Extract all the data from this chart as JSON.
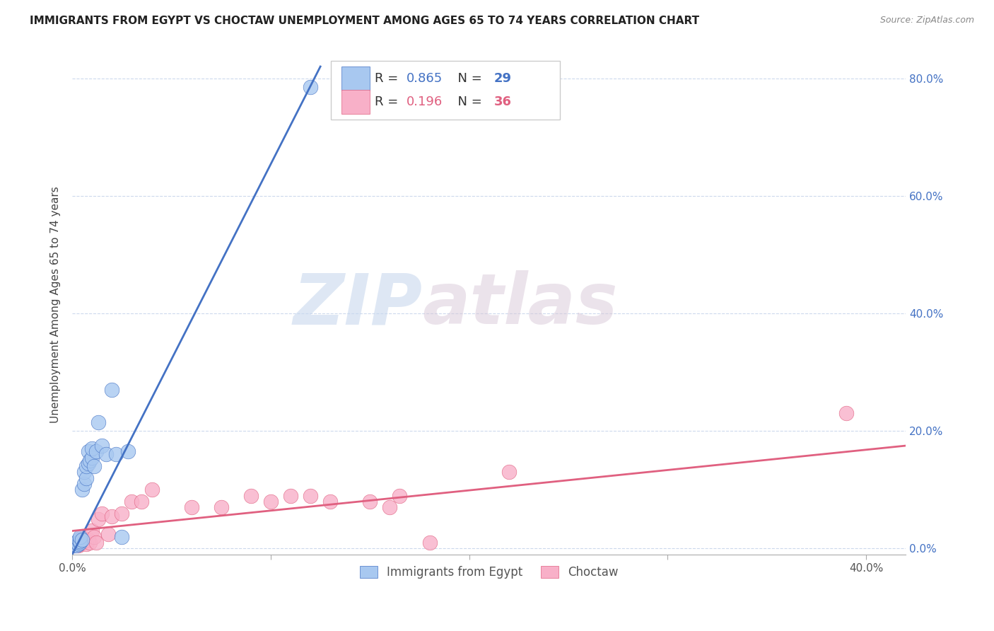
{
  "title": "IMMIGRANTS FROM EGYPT VS CHOCTAW UNEMPLOYMENT AMONG AGES 65 TO 74 YEARS CORRELATION CHART",
  "source": "Source: ZipAtlas.com",
  "xlim": [
    0.0,
    0.42
  ],
  "ylim": [
    -0.01,
    0.84
  ],
  "ylabel": "Unemployment Among Ages 65 to 74 years",
  "legend_label1": "Immigrants from Egypt",
  "legend_label2": "Choctaw",
  "R1": 0.865,
  "N1": 29,
  "R2": 0.196,
  "N2": 36,
  "color1": "#a8c8f0",
  "color2": "#f8b0c8",
  "line_color1": "#4472c4",
  "line_color2": "#e06080",
  "watermark_zip": "ZIP",
  "watermark_atlas": "atlas",
  "blue_line_x0": 0.0,
  "blue_line_y0": -0.01,
  "blue_line_x1": 0.125,
  "blue_line_y1": 0.82,
  "pink_line_x0": 0.0,
  "pink_line_y0": 0.03,
  "pink_line_x1": 0.42,
  "pink_line_y1": 0.175,
  "blue_scatter_x": [
    0.001,
    0.002,
    0.002,
    0.003,
    0.003,
    0.004,
    0.004,
    0.004,
    0.005,
    0.005,
    0.006,
    0.006,
    0.007,
    0.007,
    0.008,
    0.008,
    0.009,
    0.01,
    0.01,
    0.011,
    0.012,
    0.013,
    0.015,
    0.017,
    0.02,
    0.022,
    0.025,
    0.028,
    0.12
  ],
  "blue_scatter_y": [
    0.005,
    0.005,
    0.01,
    0.008,
    0.015,
    0.01,
    0.012,
    0.02,
    0.015,
    0.1,
    0.11,
    0.13,
    0.12,
    0.14,
    0.145,
    0.165,
    0.15,
    0.155,
    0.17,
    0.14,
    0.165,
    0.215,
    0.175,
    0.16,
    0.27,
    0.16,
    0.02,
    0.165,
    0.785
  ],
  "pink_scatter_x": [
    0.001,
    0.002,
    0.003,
    0.003,
    0.004,
    0.004,
    0.005,
    0.005,
    0.006,
    0.007,
    0.008,
    0.009,
    0.01,
    0.011,
    0.012,
    0.013,
    0.015,
    0.018,
    0.02,
    0.025,
    0.03,
    0.035,
    0.04,
    0.06,
    0.075,
    0.09,
    0.1,
    0.11,
    0.12,
    0.13,
    0.15,
    0.16,
    0.165,
    0.18,
    0.22,
    0.39
  ],
  "pink_scatter_y": [
    0.005,
    0.01,
    0.005,
    0.01,
    0.008,
    0.015,
    0.01,
    0.02,
    0.012,
    0.008,
    0.015,
    0.01,
    0.03,
    0.02,
    0.01,
    0.05,
    0.06,
    0.025,
    0.055,
    0.06,
    0.08,
    0.08,
    0.1,
    0.07,
    0.07,
    0.09,
    0.08,
    0.09,
    0.09,
    0.08,
    0.08,
    0.07,
    0.09,
    0.01,
    0.13,
    0.23
  ],
  "ytick_positions": [
    0.0,
    0.2,
    0.4,
    0.6,
    0.8
  ],
  "ytick_labels": [
    "0.0%",
    "20.0%",
    "40.0%",
    "60.0%",
    "80.0%"
  ],
  "xtick_left_label": "0.0%",
  "xtick_right_label": "40.0%"
}
